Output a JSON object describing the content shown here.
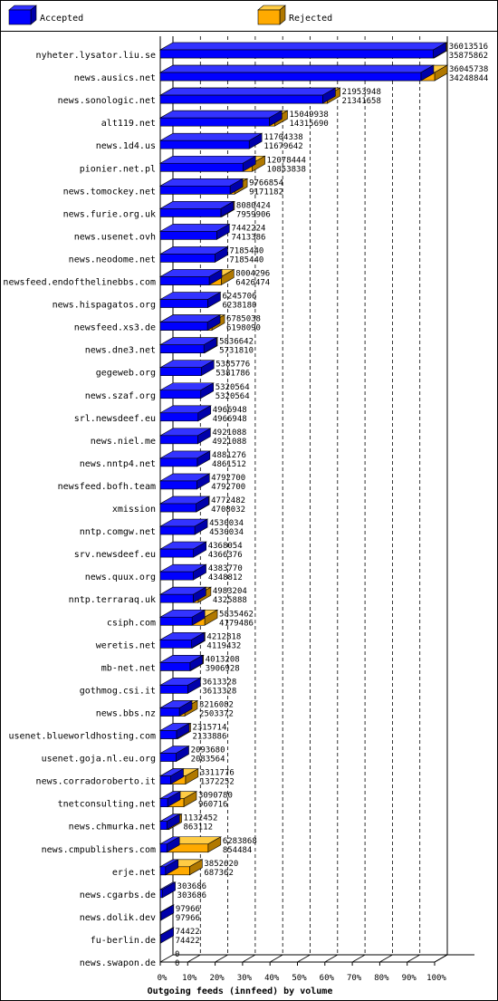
{
  "colors": {
    "accepted_front": "#0000ff",
    "accepted_top": "#3333ff",
    "accepted_side": "#0000aa",
    "rejected_front": "#ffaa00",
    "rejected_top": "#ffcc44",
    "rejected_side": "#b07800",
    "frame": "#000000"
  },
  "chart_data": {
    "type": "bar",
    "orientation": "horizontal",
    "style": "3d",
    "xlabel": "Outgoing feeds (innfeed) by volume",
    "x_ticks": [
      "0%",
      "10%",
      "20%",
      "30%",
      "40%",
      "50%",
      "60%",
      "70%",
      "80%",
      "90%",
      "100%"
    ],
    "xlim": [
      0,
      100
    ],
    "legend_position": "top",
    "series": [
      {
        "name": "Accepted"
      },
      {
        "name": "Rejected"
      }
    ],
    "categories": [
      "nyheter.lysator.liu.se",
      "news.ausics.net",
      "news.sonologic.net",
      "alt119.net",
      "news.1d4.us",
      "pionier.net.pl",
      "news.tomockey.net",
      "news.furie.org.uk",
      "news.usenet.ovh",
      "news.neodome.net",
      "newsfeed.endofthelinebbs.com",
      "news.hispagatos.org",
      "newsfeed.xs3.de",
      "news.dne3.net",
      "gegeweb.org",
      "news.szaf.org",
      "srl.newsdeef.eu",
      "news.niel.me",
      "news.nntp4.net",
      "newsfeed.bofh.team",
      "xmission",
      "nntp.comgw.net",
      "srv.newsdeef.eu",
      "news.quux.org",
      "nntp.terraraq.uk",
      "csiph.com",
      "weretis.net",
      "mb-net.net",
      "gothmog.csi.it",
      "news.bbs.nz",
      "usenet.blueworldhosting.com",
      "usenet.goja.nl.eu.org",
      "news.corradoroberto.it",
      "tnetconsulting.net",
      "news.chmurka.net",
      "news.cmpublishers.com",
      "erje.net",
      "news.cgarbs.de",
      "news.dolik.dev",
      "fu-berlin.de",
      "news.swapon.de"
    ],
    "offered": [
      36013516,
      36045738,
      21953948,
      15049938,
      11704338,
      12078444,
      9766854,
      8080424,
      7442224,
      7185440,
      8004296,
      6245706,
      6785038,
      5836642,
      5385776,
      5320564,
      4966948,
      4921088,
      4881276,
      4792700,
      4772482,
      4530034,
      4368054,
      4383770,
      4983204,
      5835462,
      4212818,
      4013208,
      3613328,
      3216082,
      2315714,
      2093680,
      3311776,
      3090780,
      1132452,
      6283868,
      3852620,
      303686,
      97966,
      74422,
      0
    ],
    "accepted": [
      35875862,
      34248844,
      21341658,
      14315690,
      11679642,
      10853838,
      9171182,
      7959906,
      7413386,
      7185440,
      6426474,
      6238180,
      6198090,
      5731810,
      5381786,
      5320564,
      4966948,
      4921088,
      4861512,
      4792700,
      4708032,
      4530034,
      4366376,
      4348812,
      4325888,
      4179486,
      4119432,
      3906928,
      3613328,
      2503372,
      2133886,
      2083564,
      1372252,
      960716,
      863112,
      854484,
      687362,
      303686,
      97966,
      74422,
      0
    ],
    "offered_labels": [
      "36013516",
      "36045738",
      "21953948",
      "15049938",
      "11704338",
      "12078444",
      "9766854",
      "8080424",
      "7442224",
      "7185440",
      "8004296",
      "6245706",
      "6785038",
      "5836642",
      "5385776",
      "5320564",
      "4966948",
      "4921088",
      "4881276",
      "4792700",
      "4772482",
      "4530034",
      "4368054",
      "4383770",
      "4983204",
      "5835462",
      "4212818",
      "4013208",
      "3613328",
      "3216082",
      "2315714",
      "2093680",
      "3311776",
      "3090780",
      "1132452",
      "6283868",
      "3852620",
      "303686",
      "97966",
      "74422",
      "0"
    ],
    "accepted_labels": [
      "35875862",
      "34248844",
      "21341658",
      "14315690",
      "11679642",
      "10853838",
      "9171182",
      "7959906",
      "7413386",
      "7185440",
      "6426474",
      "6238180",
      "6198090",
      "5731810",
      "5381786",
      "5320564",
      "4966948",
      "4921088",
      "4861512",
      "4792700",
      "4708032",
      "4530034",
      "4366376",
      "4348812",
      "4325888",
      "4179486",
      "4119432",
      "3906928",
      "3613328",
      "2503372",
      "2133886",
      "2083564",
      "1372252",
      "960716",
      "863112",
      "854484",
      "687362",
      "303686",
      "97966",
      "74422",
      "0"
    ]
  }
}
